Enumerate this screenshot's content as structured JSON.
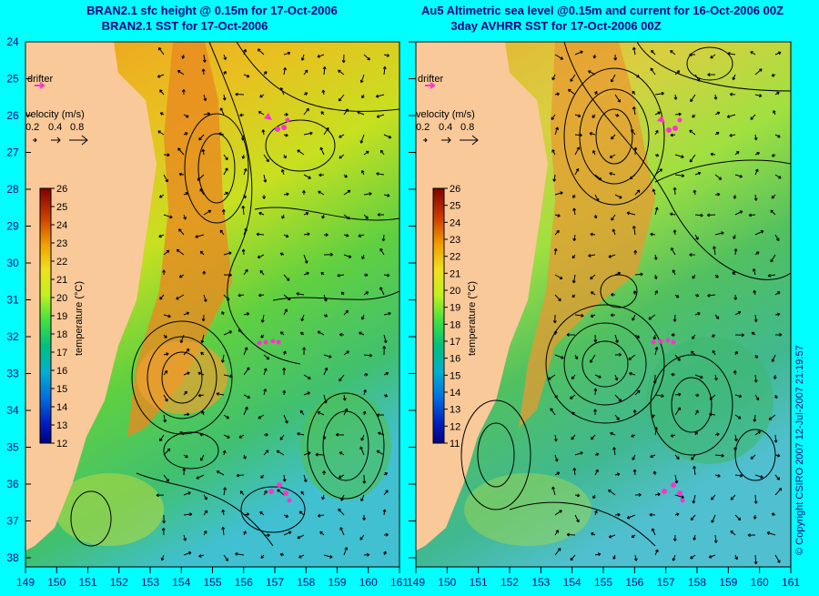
{
  "left_panel": {
    "title_line1": "BRAN2.1 sfc height @ 0.15m for 17-Oct-2006",
    "title_line2": "BRAN2.1 SST for 17-Oct-2006",
    "drifter_label": "drifter",
    "velocity_label": "velocity (m/s)",
    "velocity_scale": [
      "0.2",
      "0.4",
      "0.8"
    ],
    "colorbar_label": "temperature (°C)",
    "colorbar_ticks": [
      "26",
      "25",
      "24",
      "23",
      "22",
      "21",
      "20",
      "19",
      "18",
      "17",
      "16",
      "15",
      "14",
      "13",
      "12"
    ]
  },
  "right_panel": {
    "title_line1": "Au5 Altimetric sea level  @0.15m and current for 16-Oct-2006 00Z",
    "title_line2": "3day AVHRR SST for 17-Oct-2006 00Z",
    "drifter_label": "drifter",
    "velocity_label": "velocity (m/s)",
    "velocity_scale": [
      "0.2",
      "0.4",
      "0.8"
    ],
    "colorbar_label": "temperature (°C)",
    "colorbar_ticks": [
      "26",
      "25",
      "24",
      "23",
      "22",
      "21",
      "20",
      "19",
      "18",
      "17",
      "16",
      "15",
      "14",
      "13",
      "12",
      "11"
    ]
  },
  "lat_ticks": [
    "24",
    "25",
    "26",
    "27",
    "28",
    "29",
    "30",
    "31",
    "32",
    "33",
    "34",
    "35",
    "36",
    "37",
    "38"
  ],
  "lon_ticks": [
    "149",
    "150",
    "151",
    "152",
    "153",
    "154",
    "155",
    "156",
    "157",
    "158",
    "159",
    "160",
    "161"
  ],
  "copyright": "© Copyright CSIRO 2007 12-Jul-2007 21:19:57",
  "colors": {
    "background": "#00ffff",
    "land": "#f9c99a",
    "drifter": "#ff33cc",
    "title": "#000080"
  }
}
